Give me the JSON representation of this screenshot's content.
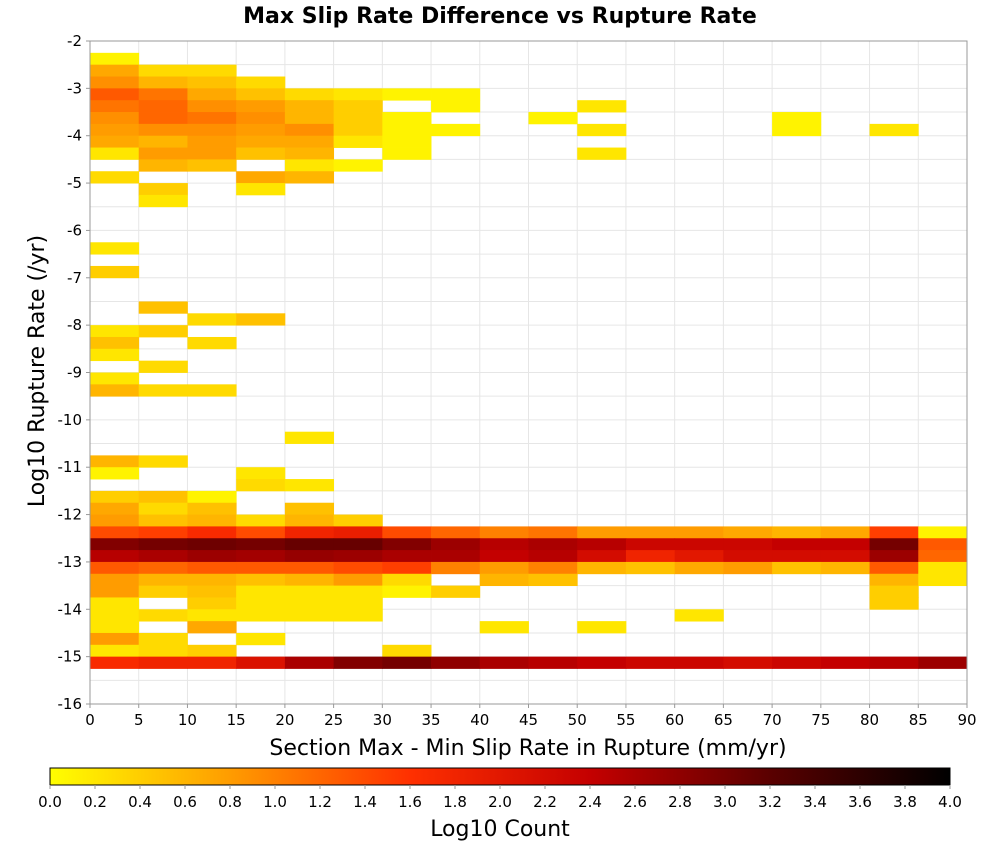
{
  "chart_data": {
    "type": "heatmap",
    "title": "Max Slip Rate Difference vs Rupture Rate",
    "xlabel": "Section Max - Min Slip Rate in Rupture (mm/yr)",
    "ylabel": "Log10 Rupture Rate (/yr)",
    "xlim": [
      0,
      90
    ],
    "ylim": [
      -16,
      -2
    ],
    "x_bin_width": 5,
    "y_bin_width": 0.25,
    "x_ticks": [
      "0",
      "5",
      "10",
      "15",
      "20",
      "25",
      "30",
      "35",
      "40",
      "45",
      "50",
      "55",
      "60",
      "65",
      "70",
      "75",
      "80",
      "85",
      "90"
    ],
    "y_ticks": [
      "-2",
      "-3",
      "-4",
      "-5",
      "-6",
      "-7",
      "-8",
      "-9",
      "-10",
      "-11",
      "-12",
      "-13",
      "-14",
      "-15",
      "-16"
    ],
    "grid": true,
    "colorbar": {
      "label": "Log10 Count",
      "range": [
        0,
        4
      ],
      "ticks": [
        "0.0",
        "0.2",
        "0.4",
        "0.6",
        "0.8",
        "1.0",
        "1.2",
        "1.4",
        "1.6",
        "1.8",
        "2.0",
        "2.2",
        "2.4",
        "2.6",
        "2.8",
        "3.0",
        "3.2",
        "3.4",
        "3.6",
        "3.8",
        "4.0"
      ],
      "colors": [
        "#ffff00",
        "#ff9c00",
        "#ff3000",
        "#c40000",
        "#5a0000",
        "#000000"
      ]
    },
    "columns": [
      "x_start",
      "y_start",
      "log10_count"
    ],
    "cells": [
      [
        0,
        -2.5,
        0.1
      ],
      [
        0,
        -2.75,
        0.7
      ],
      [
        5,
        -2.75,
        0.3
      ],
      [
        10,
        -2.75,
        0.3
      ],
      [
        0,
        -3.0,
        0.9
      ],
      [
        5,
        -3.0,
        0.6
      ],
      [
        10,
        -3.0,
        0.5
      ],
      [
        15,
        -3.0,
        0.3
      ],
      [
        0,
        -3.25,
        1.3
      ],
      [
        5,
        -3.25,
        1.1
      ],
      [
        10,
        -3.25,
        0.7
      ],
      [
        15,
        -3.25,
        0.5
      ],
      [
        20,
        -3.25,
        0.3
      ],
      [
        25,
        -3.25,
        0.2
      ],
      [
        30,
        -3.25,
        0.1
      ],
      [
        35,
        -3.25,
        0.1
      ],
      [
        0,
        -3.5,
        1.1
      ],
      [
        5,
        -3.5,
        1.2
      ],
      [
        10,
        -3.5,
        0.9
      ],
      [
        15,
        -3.5,
        0.8
      ],
      [
        20,
        -3.5,
        0.6
      ],
      [
        25,
        -3.5,
        0.4
      ],
      [
        35,
        -3.5,
        0.1
      ],
      [
        50,
        -3.5,
        0.2
      ],
      [
        0,
        -3.75,
        0.9
      ],
      [
        5,
        -3.75,
        1.2
      ],
      [
        10,
        -3.75,
        1.1
      ],
      [
        15,
        -3.75,
        0.9
      ],
      [
        20,
        -3.75,
        0.6
      ],
      [
        25,
        -3.75,
        0.4
      ],
      [
        30,
        -3.75,
        0.1
      ],
      [
        45,
        -3.75,
        0.1
      ],
      [
        70,
        -3.75,
        0.1
      ],
      [
        0,
        -4.0,
        0.8
      ],
      [
        5,
        -4.0,
        0.9
      ],
      [
        10,
        -4.0,
        0.9
      ],
      [
        15,
        -4.0,
        0.8
      ],
      [
        20,
        -4.0,
        0.9
      ],
      [
        25,
        -4.0,
        0.4
      ],
      [
        30,
        -4.0,
        0.1
      ],
      [
        35,
        -4.0,
        0.1
      ],
      [
        50,
        -4.0,
        0.2
      ],
      [
        70,
        -4.0,
        0.1
      ],
      [
        80,
        -4.0,
        0.2
      ],
      [
        0,
        -4.25,
        0.7
      ],
      [
        5,
        -4.25,
        0.6
      ],
      [
        10,
        -4.25,
        0.8
      ],
      [
        15,
        -4.25,
        0.7
      ],
      [
        20,
        -4.25,
        0.7
      ],
      [
        25,
        -4.25,
        0.2
      ],
      [
        30,
        -4.25,
        0.1
      ],
      [
        0,
        -4.5,
        0.2
      ],
      [
        5,
        -4.5,
        0.8
      ],
      [
        10,
        -4.5,
        0.8
      ],
      [
        15,
        -4.5,
        0.5
      ],
      [
        20,
        -4.5,
        0.6
      ],
      [
        30,
        -4.5,
        0.1
      ],
      [
        50,
        -4.5,
        0.2
      ],
      [
        5,
        -4.75,
        0.6
      ],
      [
        10,
        -4.75,
        0.5
      ],
      [
        20,
        -4.75,
        0.2
      ],
      [
        25,
        -4.75,
        0.1
      ],
      [
        0,
        -5.0,
        0.3
      ],
      [
        15,
        -5.0,
        0.7
      ],
      [
        20,
        -5.0,
        0.6
      ],
      [
        5,
        -5.25,
        0.4
      ],
      [
        15,
        -5.25,
        0.2
      ],
      [
        5,
        -5.5,
        0.2
      ],
      [
        0,
        -6.5,
        0.2
      ],
      [
        0,
        -7.0,
        0.4
      ],
      [
        5,
        -7.75,
        0.5
      ],
      [
        10,
        -8.0,
        0.3
      ],
      [
        15,
        -8.0,
        0.5
      ],
      [
        0,
        -8.25,
        0.2
      ],
      [
        5,
        -8.25,
        0.4
      ],
      [
        0,
        -8.5,
        0.5
      ],
      [
        10,
        -8.5,
        0.3
      ],
      [
        0,
        -8.75,
        0.2
      ],
      [
        5,
        -9.0,
        0.3
      ],
      [
        0,
        -9.25,
        0.2
      ],
      [
        0,
        -9.5,
        0.6
      ],
      [
        5,
        -9.5,
        0.3
      ],
      [
        10,
        -9.5,
        0.3
      ],
      [
        20,
        -10.5,
        0.2
      ],
      [
        0,
        -11.0,
        0.6
      ],
      [
        5,
        -11.0,
        0.3
      ],
      [
        0,
        -11.25,
        0.1
      ],
      [
        15,
        -11.25,
        0.2
      ],
      [
        15,
        -11.5,
        0.3
      ],
      [
        20,
        -11.5,
        0.2
      ],
      [
        0,
        -11.75,
        0.4
      ],
      [
        5,
        -11.75,
        0.5
      ],
      [
        10,
        -11.75,
        0.1
      ],
      [
        0,
        -12.0,
        0.7
      ],
      [
        5,
        -12.0,
        0.3
      ],
      [
        10,
        -12.0,
        0.5
      ],
      [
        20,
        -12.0,
        0.5
      ],
      [
        0,
        -12.25,
        0.8
      ],
      [
        5,
        -12.25,
        0.5
      ],
      [
        10,
        -12.25,
        0.6
      ],
      [
        15,
        -12.25,
        0.3
      ],
      [
        20,
        -12.25,
        0.6
      ],
      [
        25,
        -12.25,
        0.4
      ],
      [
        0,
        -12.5,
        1.4
      ],
      [
        5,
        -12.5,
        1.5
      ],
      [
        10,
        -12.5,
        1.7
      ],
      [
        15,
        -12.5,
        1.4
      ],
      [
        20,
        -12.5,
        1.8
      ],
      [
        25,
        -12.5,
        1.9
      ],
      [
        30,
        -12.5,
        1.4
      ],
      [
        35,
        -12.5,
        1.2
      ],
      [
        40,
        -12.5,
        1.0
      ],
      [
        45,
        -12.5,
        1.1
      ],
      [
        50,
        -12.5,
        0.8
      ],
      [
        55,
        -12.5,
        0.8
      ],
      [
        60,
        -12.5,
        0.8
      ],
      [
        65,
        -12.5,
        0.7
      ],
      [
        70,
        -12.5,
        0.6
      ],
      [
        75,
        -12.5,
        0.7
      ],
      [
        80,
        -12.5,
        1.5
      ],
      [
        85,
        -12.5,
        0.1
      ],
      [
        0,
        -12.75,
        2.9
      ],
      [
        5,
        -12.75,
        3.0
      ],
      [
        10,
        -12.75,
        3.05
      ],
      [
        15,
        -12.75,
        3.0
      ],
      [
        20,
        -12.75,
        3.1
      ],
      [
        25,
        -12.75,
        3.1
      ],
      [
        30,
        -12.75,
        2.9
      ],
      [
        35,
        -12.75,
        2.7
      ],
      [
        40,
        -12.75,
        2.5
      ],
      [
        45,
        -12.75,
        2.6
      ],
      [
        50,
        -12.75,
        2.5
      ],
      [
        55,
        -12.75,
        2.3
      ],
      [
        60,
        -12.75,
        2.3
      ],
      [
        65,
        -12.75,
        2.3
      ],
      [
        70,
        -12.75,
        2.4
      ],
      [
        75,
        -12.75,
        2.4
      ],
      [
        80,
        -12.75,
        3.0
      ],
      [
        85,
        -12.75,
        1.3
      ],
      [
        0,
        -13.0,
        2.5
      ],
      [
        5,
        -13.0,
        2.6
      ],
      [
        10,
        -13.0,
        2.7
      ],
      [
        15,
        -13.0,
        2.65
      ],
      [
        20,
        -13.0,
        2.75
      ],
      [
        25,
        -13.0,
        2.7
      ],
      [
        30,
        -13.0,
        2.6
      ],
      [
        35,
        -13.0,
        2.6
      ],
      [
        40,
        -13.0,
        2.4
      ],
      [
        45,
        -13.0,
        2.5
      ],
      [
        50,
        -13.0,
        2.2
      ],
      [
        55,
        -13.0,
        1.8
      ],
      [
        60,
        -13.0,
        2.0
      ],
      [
        65,
        -13.0,
        2.2
      ],
      [
        70,
        -13.0,
        2.2
      ],
      [
        75,
        -13.0,
        2.2
      ],
      [
        80,
        -13.0,
        2.7
      ],
      [
        85,
        -13.0,
        1.2
      ],
      [
        0,
        -13.25,
        1.3
      ],
      [
        5,
        -13.25,
        1.2
      ],
      [
        10,
        -13.25,
        1.3
      ],
      [
        15,
        -13.25,
        1.3
      ],
      [
        20,
        -13.25,
        1.3
      ],
      [
        25,
        -13.25,
        1.4
      ],
      [
        30,
        -13.25,
        1.5
      ],
      [
        35,
        -13.25,
        1.0
      ],
      [
        40,
        -13.25,
        0.8
      ],
      [
        45,
        -13.25,
        1.0
      ],
      [
        50,
        -13.25,
        0.6
      ],
      [
        55,
        -13.25,
        0.5
      ],
      [
        60,
        -13.25,
        0.7
      ],
      [
        65,
        -13.25,
        0.8
      ],
      [
        70,
        -13.25,
        0.5
      ],
      [
        75,
        -13.25,
        0.6
      ],
      [
        80,
        -13.25,
        1.3
      ],
      [
        85,
        -13.25,
        0.2
      ],
      [
        0,
        -13.5,
        0.8
      ],
      [
        5,
        -13.5,
        0.6
      ],
      [
        10,
        -13.5,
        0.6
      ],
      [
        15,
        -13.5,
        0.5
      ],
      [
        20,
        -13.5,
        0.6
      ],
      [
        25,
        -13.5,
        0.8
      ],
      [
        30,
        -13.5,
        0.3
      ],
      [
        40,
        -13.5,
        0.6
      ],
      [
        45,
        -13.5,
        0.5
      ],
      [
        80,
        -13.5,
        0.6
      ],
      [
        85,
        -13.5,
        0.2
      ],
      [
        0,
        -13.75,
        0.8
      ],
      [
        5,
        -13.75,
        0.4
      ],
      [
        10,
        -13.75,
        0.5
      ],
      [
        15,
        -13.75,
        0.2
      ],
      [
        20,
        -13.75,
        0.2
      ],
      [
        25,
        -13.75,
        0.2
      ],
      [
        30,
        -13.75,
        0.1
      ],
      [
        35,
        -13.75,
        0.4
      ],
      [
        80,
        -13.75,
        0.4
      ],
      [
        0,
        -14.0,
        0.2
      ],
      [
        10,
        -14.0,
        0.4
      ],
      [
        15,
        -14.0,
        0.2
      ],
      [
        20,
        -14.0,
        0.2
      ],
      [
        25,
        -14.0,
        0.2
      ],
      [
        80,
        -14.0,
        0.4
      ],
      [
        0,
        -14.25,
        0.2
      ],
      [
        5,
        -14.25,
        0.3
      ],
      [
        10,
        -14.25,
        0.2
      ],
      [
        15,
        -14.25,
        0.2
      ],
      [
        20,
        -14.25,
        0.2
      ],
      [
        25,
        -14.25,
        0.2
      ],
      [
        60,
        -14.25,
        0.2
      ],
      [
        0,
        -14.5,
        0.2
      ],
      [
        10,
        -14.5,
        0.7
      ],
      [
        40,
        -14.5,
        0.2
      ],
      [
        50,
        -14.5,
        0.2
      ],
      [
        0,
        -14.75,
        0.8
      ],
      [
        5,
        -14.75,
        0.3
      ],
      [
        15,
        -14.75,
        0.2
      ],
      [
        0,
        -15.0,
        0.2
      ],
      [
        5,
        -15.0,
        0.3
      ],
      [
        10,
        -15.0,
        0.4
      ],
      [
        30,
        -15.0,
        0.3
      ],
      [
        0,
        -15.25,
        1.7
      ],
      [
        5,
        -15.25,
        1.8
      ],
      [
        10,
        -15.25,
        1.8
      ],
      [
        15,
        -15.25,
        2.1
      ],
      [
        20,
        -15.25,
        2.6
      ],
      [
        25,
        -15.25,
        2.9
      ],
      [
        30,
        -15.25,
        3.0
      ],
      [
        35,
        -15.25,
        2.8
      ],
      [
        40,
        -15.25,
        2.6
      ],
      [
        45,
        -15.25,
        2.5
      ],
      [
        50,
        -15.25,
        2.4
      ],
      [
        55,
        -15.25,
        2.3
      ],
      [
        60,
        -15.25,
        2.3
      ],
      [
        65,
        -15.25,
        2.2
      ],
      [
        70,
        -15.25,
        2.3
      ],
      [
        75,
        -15.25,
        2.4
      ],
      [
        80,
        -15.25,
        2.5
      ],
      [
        85,
        -15.25,
        2.7
      ]
    ]
  }
}
